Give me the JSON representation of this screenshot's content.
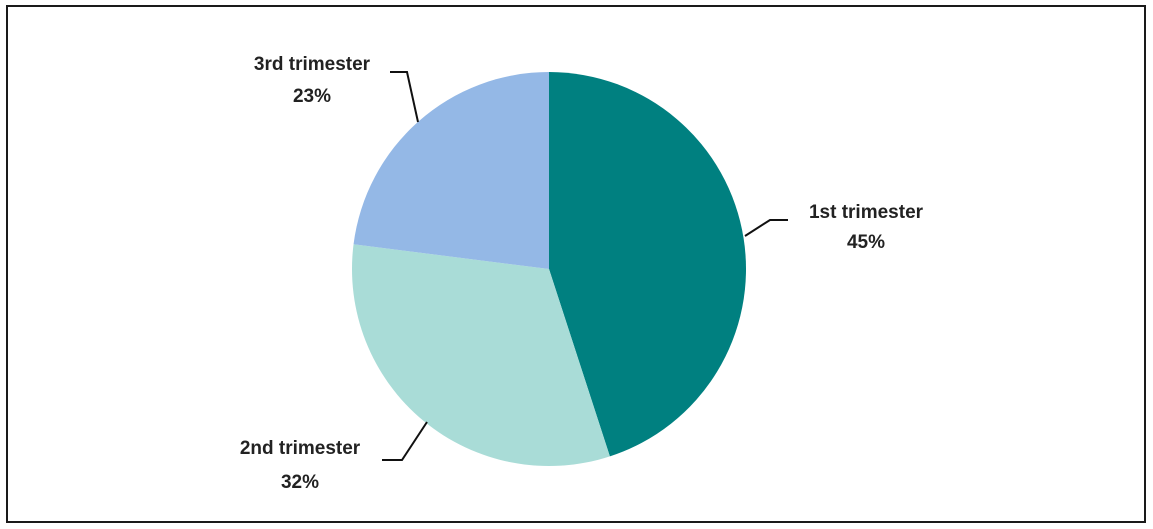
{
  "chart_data": {
    "type": "pie",
    "title": "",
    "slices": [
      {
        "label": "1st trimester",
        "value": 45,
        "display": "45%",
        "color": "#008080"
      },
      {
        "label": "2nd trimester",
        "value": 32,
        "display": "32%",
        "color": "#a9dcd7"
      },
      {
        "label": "3rd trimester",
        "value": 23,
        "display": "23%",
        "color": "#94b8e6"
      }
    ],
    "start_angle": "12 o'clock",
    "direction": "clockwise",
    "legend": "none",
    "labels": "outside with leader lines"
  }
}
